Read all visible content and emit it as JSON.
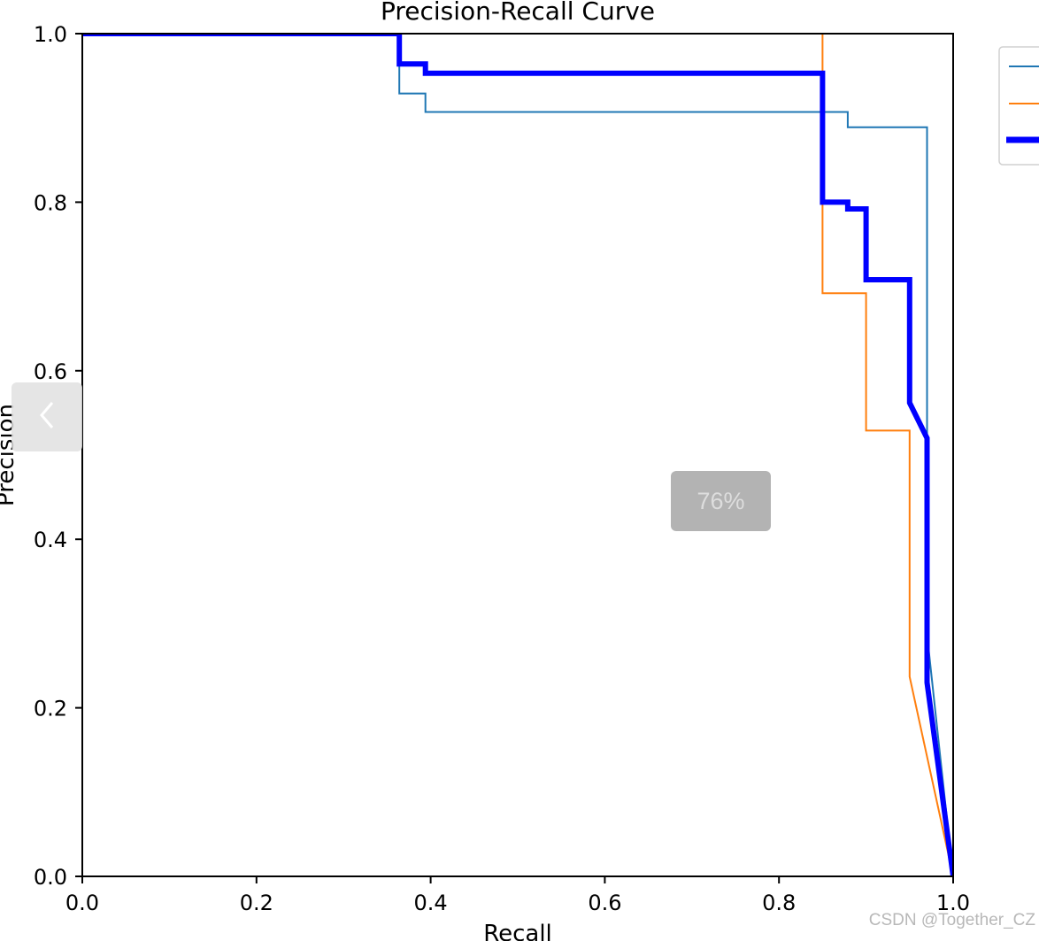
{
  "chart_data": {
    "type": "line",
    "title": "Precision-Recall Curve",
    "xlabel": "Recall",
    "ylabel": "Precision",
    "xlim": [
      0,
      1
    ],
    "ylim": [
      0,
      1
    ],
    "xticks": [
      "0.0",
      "0.2",
      "0.4",
      "0.6",
      "0.8",
      "1.0"
    ],
    "yticks": [
      "0.0",
      "0.2",
      "0.4",
      "0.6",
      "0.8",
      "1.0"
    ],
    "grid": false,
    "legend_position": "top-right",
    "series": [
      {
        "color": "#1f77b4",
        "style": "thin",
        "x": [
          0,
          0.364,
          0.364,
          0.394,
          0.394,
          0.879,
          0.879,
          0.97,
          0.97,
          1.0
        ],
        "y": [
          1.0,
          1.0,
          0.929,
          0.929,
          0.907,
          0.907,
          0.889,
          0.889,
          0.287,
          0.0
        ]
      },
      {
        "color": "#ff7f0e",
        "style": "thin",
        "x": [
          0.85,
          0.85,
          0.9,
          0.9,
          0.95,
          0.95,
          1.0
        ],
        "y": [
          1.0,
          0.692,
          0.692,
          0.529,
          0.529,
          0.237,
          0.0
        ]
      },
      {
        "color": "#0000ff",
        "style": "thick",
        "x": [
          0,
          0.364,
          0.364,
          0.394,
          0.394,
          0.85,
          0.85,
          0.879,
          0.879,
          0.9,
          0.9,
          0.95,
          0.95,
          0.97,
          0.97,
          1.0
        ],
        "y": [
          1.0,
          1.0,
          0.964,
          0.964,
          0.953,
          0.953,
          0.8,
          0.8,
          0.792,
          0.792,
          0.708,
          0.708,
          0.562,
          0.52,
          0.23,
          0.0
        ]
      }
    ]
  },
  "overlay": {
    "prev_icon": "chevron-left-icon",
    "zoom_label": "76%",
    "watermark": "CSDN @Together_CZ"
  }
}
